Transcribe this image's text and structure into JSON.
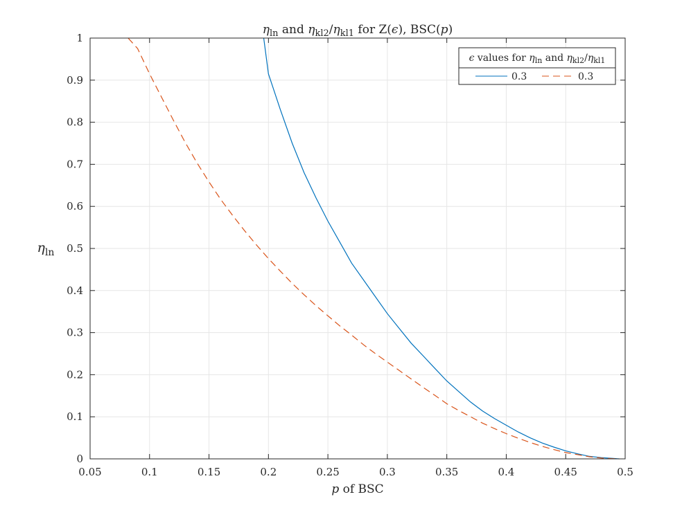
{
  "chart_data": {
    "type": "line",
    "title": {
      "eta": "η",
      "sub_ln": "ln",
      "and": " and ",
      "sub_kl2": "kl2",
      "slash": "/",
      "sub_kl1": "kl1",
      "suffix_1": " for Z(",
      "epsilon": "ϵ",
      "suffix_2": "), BSC(",
      "p": "p",
      "suffix_3": ")"
    },
    "xlabel": {
      "p": "p",
      "rest": " of BSC"
    },
    "ylabel": {
      "eta": "η",
      "sub": "ln"
    },
    "xlim": [
      0.05,
      0.5
    ],
    "ylim": [
      0,
      1
    ],
    "xticks": [
      0.05,
      0.1,
      0.15,
      0.2,
      0.25,
      0.3,
      0.35,
      0.4,
      0.45,
      0.5
    ],
    "xtick_labels": [
      "0.05",
      "0.1",
      "0.15",
      "0.2",
      "0.25",
      "0.3",
      "0.35",
      "0.4",
      "0.45",
      "0.5"
    ],
    "yticks": [
      0,
      0.1,
      0.2,
      0.3,
      0.4,
      0.5,
      0.6,
      0.7,
      0.8,
      0.9,
      1
    ],
    "ytick_labels": [
      "0",
      "0.1",
      "0.2",
      "0.3",
      "0.4",
      "0.5",
      "0.6",
      "0.7",
      "0.8",
      "0.9",
      "1"
    ],
    "grid": true,
    "legend": {
      "placement": "top-right",
      "title": {
        "epsilon": "ϵ",
        "text1": " values for ",
        "eta1": "η",
        "sub1": "ln",
        "text2": " and ",
        "eta2": "η",
        "sub2": "kl2",
        "slash": "/",
        "eta3": "η",
        "sub3": "kl1"
      },
      "entries": [
        {
          "label": "0.3",
          "series": 0
        },
        {
          "label": "0.3",
          "series": 1
        }
      ]
    },
    "series": [
      {
        "name": "eta_ln (epsilon = 0.3)",
        "style": "solid",
        "color": "#0072BD",
        "x": [
          0.196,
          0.2,
          0.21,
          0.22,
          0.23,
          0.24,
          0.25,
          0.26,
          0.27,
          0.28,
          0.29,
          0.3,
          0.31,
          0.32,
          0.33,
          0.34,
          0.35,
          0.36,
          0.37,
          0.38,
          0.39,
          0.4,
          0.41,
          0.42,
          0.43,
          0.44,
          0.45,
          0.46,
          0.47,
          0.48,
          0.49,
          0.495
        ],
        "y": [
          1.0,
          0.915,
          0.83,
          0.75,
          0.68,
          0.62,
          0.565,
          0.515,
          0.465,
          0.425,
          0.385,
          0.345,
          0.31,
          0.275,
          0.245,
          0.215,
          0.185,
          0.16,
          0.135,
          0.114,
          0.096,
          0.08,
          0.064,
          0.05,
          0.038,
          0.028,
          0.019,
          0.012,
          0.006,
          0.003,
          0.001,
          0.0
        ]
      },
      {
        "name": "eta_kl2 / eta_kl1 (epsilon = 0.3)",
        "style": "dashed",
        "color": "#D95319",
        "x": [
          0.082,
          0.09,
          0.1,
          0.11,
          0.12,
          0.13,
          0.14,
          0.15,
          0.16,
          0.17,
          0.18,
          0.19,
          0.2,
          0.21,
          0.22,
          0.23,
          0.24,
          0.25,
          0.26,
          0.27,
          0.28,
          0.29,
          0.3,
          0.31,
          0.32,
          0.33,
          0.34,
          0.35,
          0.36,
          0.37,
          0.38,
          0.39,
          0.4,
          0.41,
          0.42,
          0.43,
          0.44,
          0.45,
          0.46,
          0.47,
          0.48,
          0.49,
          0.495
        ],
        "y": [
          1.0,
          0.975,
          0.915,
          0.86,
          0.805,
          0.752,
          0.703,
          0.658,
          0.616,
          0.578,
          0.542,
          0.508,
          0.476,
          0.446,
          0.417,
          0.39,
          0.364,
          0.34,
          0.316,
          0.294,
          0.271,
          0.25,
          0.23,
          0.21,
          0.19,
          0.17,
          0.151,
          0.131,
          0.115,
          0.1,
          0.085,
          0.072,
          0.06,
          0.049,
          0.039,
          0.03,
          0.022,
          0.015,
          0.01,
          0.005,
          0.002,
          0.0005,
          0.0
        ]
      }
    ]
  }
}
